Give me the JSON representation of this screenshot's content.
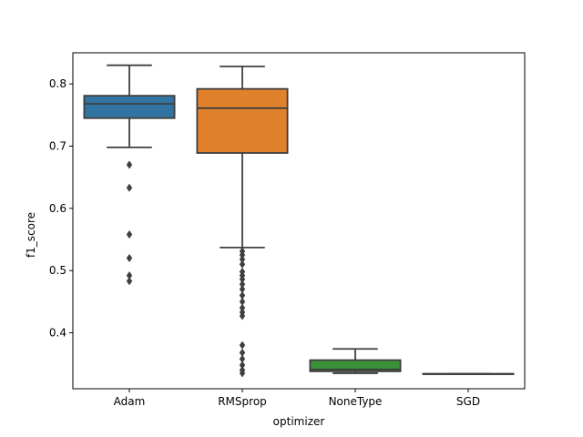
{
  "chart_data": {
    "type": "box",
    "title": "",
    "xlabel": "optimizer",
    "ylabel": "f1_score",
    "categories": [
      "Adam",
      "RMSprop",
      "NoneType",
      "SGD"
    ],
    "ylim": [
      0.31,
      0.85
    ],
    "yticks": [
      0.4,
      0.5,
      0.6,
      0.7,
      0.8
    ],
    "ytick_labels": [
      "0.4",
      "0.5",
      "0.6",
      "0.7",
      "0.8"
    ],
    "grid": false,
    "colors": {
      "Adam": "#3274a1",
      "RMSprop": "#e1812c",
      "NoneType": "#3a923a",
      "SGD": "#c03d3e",
      "line": "#3f3f3f"
    },
    "boxes": [
      {
        "category": "Adam",
        "whisker_low": 0.698,
        "q1": 0.745,
        "median": 0.768,
        "q3": 0.781,
        "whisker_high": 0.83,
        "outliers": [
          0.67,
          0.633,
          0.558,
          0.52,
          0.492,
          0.483
        ]
      },
      {
        "category": "RMSprop",
        "whisker_low": 0.537,
        "q1": 0.689,
        "median": 0.761,
        "q3": 0.792,
        "whisker_high": 0.828,
        "outliers": [
          0.531,
          0.525,
          0.518,
          0.51,
          0.498,
          0.492,
          0.486,
          0.478,
          0.47,
          0.46,
          0.45,
          0.44,
          0.433,
          0.427,
          0.38,
          0.368,
          0.358,
          0.348,
          0.34,
          0.335
        ]
      },
      {
        "category": "NoneType",
        "whisker_low": 0.335,
        "q1": 0.338,
        "median": 0.341,
        "q3": 0.356,
        "whisker_high": 0.374,
        "outliers": []
      },
      {
        "category": "SGD",
        "whisker_low": 0.334,
        "q1": 0.334,
        "median": 0.334,
        "q3": 0.334,
        "whisker_high": 0.334,
        "outliers": []
      }
    ]
  }
}
